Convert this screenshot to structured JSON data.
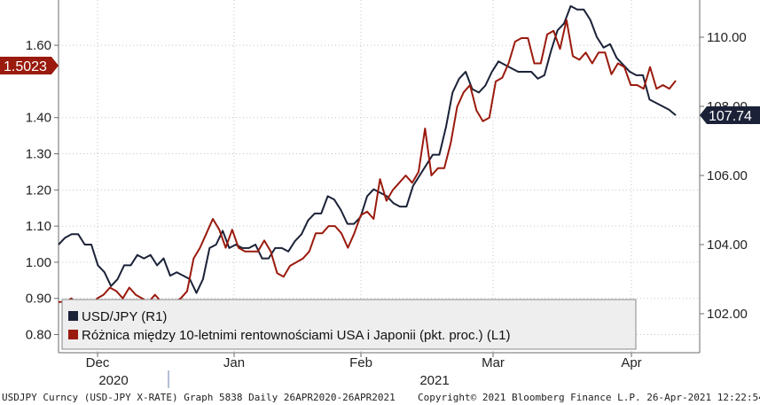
{
  "chart_data": {
    "type": "line",
    "x_axis": {
      "month_labels": [
        "Dec",
        "Jan",
        "Feb",
        "Mar",
        "Apr"
      ],
      "year_labels": [
        "2020",
        "2021"
      ]
    },
    "left_axis": {
      "ylim": [
        0.74,
        1.74
      ],
      "ticks": [
        "0.80",
        "0.90",
        "1.00",
        "1.10",
        "1.20",
        "1.30",
        "1.40",
        "1.60"
      ]
    },
    "right_axis": {
      "ylim": [
        101.0,
        111.0
      ],
      "ticks": [
        "102.00",
        "104.00",
        "106.00",
        "108.00",
        "110.00"
      ]
    },
    "last_value_left": "1.5023",
    "last_value_right": "107.74",
    "legend": [
      {
        "name": "USD/JPY (R1)",
        "color": "#1b2238"
      },
      {
        "name": "Różnica między 10-letnimi rentownościami USA i Japonii (pkt. proc.) (L1)",
        "color": "#9a1a0d"
      }
    ],
    "series": [
      {
        "name": "USD/JPY (R1)",
        "axis": "right",
        "color": "#1b2238",
        "values": [
          104.0,
          104.2,
          104.3,
          104.3,
          104.0,
          104.0,
          103.4,
          103.2,
          102.8,
          103.0,
          103.4,
          103.4,
          103.7,
          103.6,
          103.7,
          103.4,
          103.6,
          103.1,
          103.2,
          103.1,
          103.0,
          102.6,
          103.0,
          103.9,
          104.0,
          104.4,
          103.9,
          104.0,
          103.9,
          103.9,
          104.0,
          103.6,
          103.6,
          103.9,
          103.9,
          103.8,
          104.1,
          104.3,
          104.7,
          104.9,
          104.9,
          105.4,
          105.3,
          105.0,
          104.6,
          104.6,
          104.8,
          105.4,
          105.6,
          105.5,
          105.4,
          105.2,
          105.1,
          105.1,
          105.7,
          106.0,
          106.3,
          106.6,
          106.6,
          107.4,
          108.4,
          108.8,
          109.0,
          108.5,
          108.4,
          108.6,
          109.0,
          109.3,
          109.2,
          109.1,
          109.0,
          109.0,
          109.0,
          108.8,
          108.9,
          109.6,
          110.2,
          110.4,
          110.9,
          110.8,
          110.8,
          110.5,
          110.0,
          109.7,
          109.8,
          109.4,
          109.2,
          109.0,
          108.9,
          108.9,
          108.2,
          108.1,
          108.0,
          107.9,
          107.74
        ]
      },
      {
        "name": "Różnica między 10-letnimi rentownościami USA i Japonii (pkt. proc.) (L1)",
        "axis": "left",
        "color": "#9a1a0d",
        "values": [
          0.89,
          0.89,
          0.9,
          0.88,
          0.87,
          0.87,
          0.9,
          0.91,
          0.93,
          0.92,
          0.9,
          0.93,
          0.91,
          0.9,
          0.89,
          0.91,
          0.89,
          0.89,
          0.89,
          0.9,
          0.92,
          1.01,
          1.04,
          1.08,
          1.12,
          1.09,
          1.04,
          1.09,
          1.04,
          1.03,
          1.03,
          1.03,
          1.06,
          1.03,
          0.97,
          0.96,
          0.99,
          1.0,
          1.01,
          1.03,
          1.08,
          1.08,
          1.1,
          1.1,
          1.08,
          1.04,
          1.08,
          1.13,
          1.14,
          1.12,
          1.23,
          1.17,
          1.2,
          1.22,
          1.24,
          1.22,
          1.25,
          1.37,
          1.24,
          1.26,
          1.26,
          1.33,
          1.43,
          1.47,
          1.49,
          1.42,
          1.39,
          1.4,
          1.5,
          1.51,
          1.55,
          1.61,
          1.62,
          1.62,
          1.55,
          1.55,
          1.63,
          1.64,
          1.59,
          1.67,
          1.57,
          1.56,
          1.58,
          1.55,
          1.58,
          1.58,
          1.52,
          1.55,
          1.54,
          1.49,
          1.49,
          1.48,
          1.54,
          1.48,
          1.49,
          1.48,
          1.5023
        ]
      }
    ]
  },
  "footer": {
    "left": "USDJPY Curncy (USD-JPY X-RATE) Graph 5838  Daily 26APR2020-26APR2021",
    "right": "Copyright© 2021 Bloomberg Finance L.P.  26-Apr-2021 12:22:54"
  }
}
